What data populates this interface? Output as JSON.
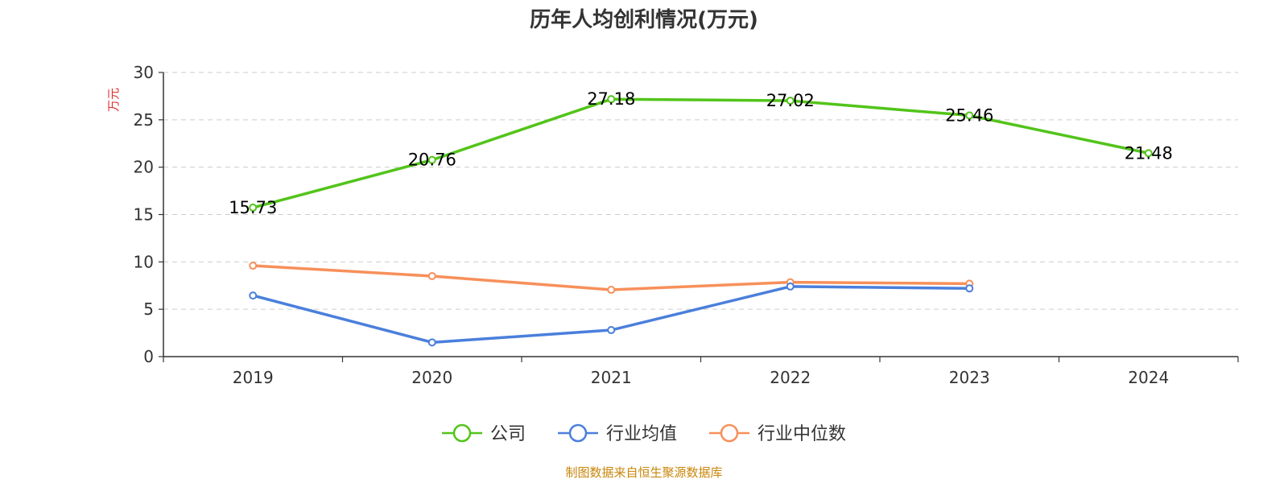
{
  "chart_data": {
    "type": "line",
    "title": "历年人均创利情况(万元)",
    "ylabel": "万元",
    "xlabel": "",
    "categories": [
      "2019",
      "2020",
      "2021",
      "2022",
      "2023",
      "2024"
    ],
    "ylim": [
      0,
      30
    ],
    "yticks": [
      0,
      5,
      10,
      15,
      20,
      25,
      30
    ],
    "grid": true,
    "legend_position": "bottom",
    "series": [
      {
        "name": "公司",
        "color": "#52c41a",
        "values": [
          15.73,
          20.76,
          27.18,
          27.02,
          25.46,
          21.48
        ],
        "labels": [
          "15.73",
          "20.76",
          "27.18",
          "27.02",
          "25.46",
          "21.48"
        ]
      },
      {
        "name": "行业均值",
        "color": "#4a7fdc",
        "values": [
          6.45,
          1.5,
          2.8,
          7.4,
          7.2,
          null
        ]
      },
      {
        "name": "行业中位数",
        "color": "#f7905a",
        "values": [
          9.6,
          8.5,
          7.05,
          7.85,
          7.7,
          null
        ]
      }
    ]
  },
  "footer": {
    "source": "制图数据来自恒生聚源数据库",
    "source_color": "#c8860a"
  },
  "ylabel_color": "#e03030"
}
